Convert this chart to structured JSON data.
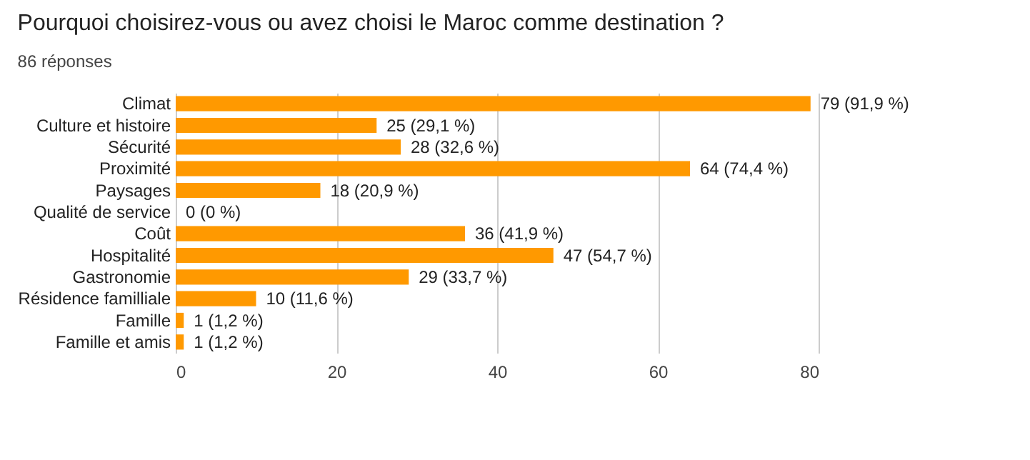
{
  "chart_data": {
    "type": "bar",
    "orientation": "horizontal",
    "title": "Pourquoi choisirez-vous ou avez choisi le Maroc comme destination ?",
    "subtitle": "86 réponses",
    "categories": [
      "Climat",
      "Culture et histoire",
      "Sécurité",
      "Proximité",
      "Paysages",
      "Qualité de service",
      "Coût",
      "Hospitalité",
      "Gastronomie",
      "Résidence familliale",
      "Famille",
      "Famille et amis"
    ],
    "values": [
      79,
      25,
      28,
      64,
      18,
      0,
      36,
      47,
      29,
      10,
      1,
      1
    ],
    "value_labels": [
      "79 (91,9 %)",
      "25 (29,1 %)",
      "28 (32,6 %)",
      "64 (74,4 %)",
      "18 (20,9 %)",
      "0 (0 %)",
      "36 (41,9 %)",
      "47 (54,7 %)",
      "29 (33,7 %)",
      "10 (11,6 %)",
      "1 (1,2 %)",
      "1 (1,2 %)"
    ],
    "color": "#ff9900",
    "xlim": [
      0,
      80
    ],
    "xticks": [
      0,
      20,
      40,
      60,
      80
    ],
    "grid": "x"
  }
}
